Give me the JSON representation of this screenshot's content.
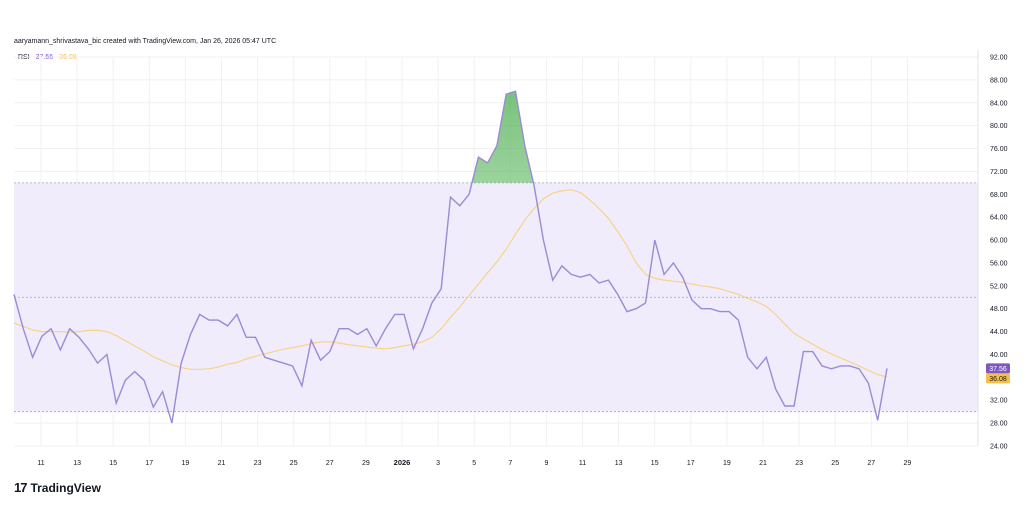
{
  "header": {
    "credit": "aaryamann_shrivastava_bic created with TradingView.com, Jan 26, 2026 05:47 UTC"
  },
  "legend": {
    "label": "RSI",
    "rsi_value": "37.56",
    "ma_value": "36.08"
  },
  "brand": {
    "logo_glyph": "17",
    "name": "TradingView"
  },
  "colors": {
    "rsi_line": "#9b8ad6",
    "ma_line": "#f7d38a",
    "band_fill": "#f1ecfb",
    "overbought_fill": "#4caf50",
    "rsi_badge": "#7e57c2",
    "ma_badge": "#f5c04a"
  },
  "chart_data": {
    "type": "line",
    "title": "RSI",
    "ylim": [
      24,
      92
    ],
    "yticks": [
      "92.00",
      "88.00",
      "84.00",
      "80.00",
      "76.00",
      "72.00",
      "68.00",
      "64.00",
      "60.00",
      "56.00",
      "52.00",
      "48.00",
      "44.00",
      "40.00",
      "36.00",
      "32.00",
      "28.00",
      "24.00"
    ],
    "xticks": [
      "11",
      "13",
      "15",
      "17",
      "19",
      "21",
      "23",
      "25",
      "27",
      "29",
      "2026",
      "3",
      "5",
      "7",
      "9",
      "11",
      "13",
      "15",
      "17",
      "19",
      "21",
      "23",
      "25",
      "27",
      "29"
    ],
    "bands": {
      "upper": 70,
      "middle": 50,
      "lower": 30
    },
    "price_labels": {
      "rsi": "37.56",
      "ma": "36.08"
    },
    "series": [
      {
        "name": "RSI",
        "values": [
          50.5,
          44.5,
          39.5,
          43.2,
          44.5,
          40.8,
          44.5,
          43.0,
          41.0,
          38.5,
          40.0,
          31.5,
          35.5,
          37.0,
          35.5,
          30.8,
          33.5,
          28.0,
          38.5,
          43.5,
          47.0,
          46.0,
          46.0,
          45.0,
          47.0,
          43.0,
          43.0,
          39.5,
          39.0,
          38.5,
          38.0,
          34.5,
          42.5,
          39.0,
          40.5,
          44.5,
          44.5,
          43.5,
          44.5,
          41.5,
          44.5,
          47.0,
          47.0,
          41.0,
          44.5,
          49.0,
          51.5,
          67.5,
          66.0,
          68.0,
          74.5,
          73.5,
          76.5,
          85.5,
          86.0,
          76.5,
          69.5,
          60.0,
          53.0,
          55.5,
          54.0,
          53.5,
          54.0,
          52.5,
          53.0,
          50.5,
          47.5,
          48.0,
          49.0,
          60.0,
          54.0,
          56.0,
          53.5,
          49.5,
          48.0,
          48.0,
          47.5,
          47.5,
          46.0,
          39.5,
          37.5,
          39.5,
          34.0,
          31.0,
          31.0,
          40.5,
          40.5,
          38.0,
          37.5,
          38.0,
          38.0,
          37.5,
          35.0,
          28.5,
          37.56
        ]
      },
      {
        "name": "MA",
        "values": [
          45.5,
          44.9,
          44.3,
          44.0,
          44.0,
          44.0,
          43.9,
          44.0,
          44.2,
          44.2,
          44.0,
          43.3,
          42.4,
          41.5,
          40.6,
          39.6,
          38.9,
          38.2,
          37.7,
          37.4,
          37.4,
          37.5,
          37.8,
          38.3,
          38.6,
          39.2,
          39.7,
          40.1,
          40.5,
          40.9,
          41.2,
          41.5,
          41.9,
          42.2,
          42.2,
          42.0,
          41.7,
          41.5,
          41.3,
          41.1,
          41.0,
          41.2,
          41.5,
          41.8,
          42.2,
          43.0,
          44.5,
          46.5,
          48.3,
          50.3,
          52.3,
          54.3,
          56.2,
          58.4,
          61.0,
          63.5,
          65.5,
          67.2,
          68.2,
          68.6,
          68.8,
          68.3,
          67.0,
          65.5,
          63.8,
          61.5,
          59.0,
          56.0,
          54.0,
          53.3,
          53.0,
          52.8,
          52.6,
          52.3,
          52.0,
          51.8,
          51.5,
          51.0,
          50.5,
          49.8,
          49.2,
          48.4,
          47.0,
          45.3,
          43.7,
          42.7,
          41.8,
          40.9,
          40.1,
          39.4,
          38.7,
          38.0,
          37.2,
          36.5,
          36.08
        ]
      }
    ]
  }
}
